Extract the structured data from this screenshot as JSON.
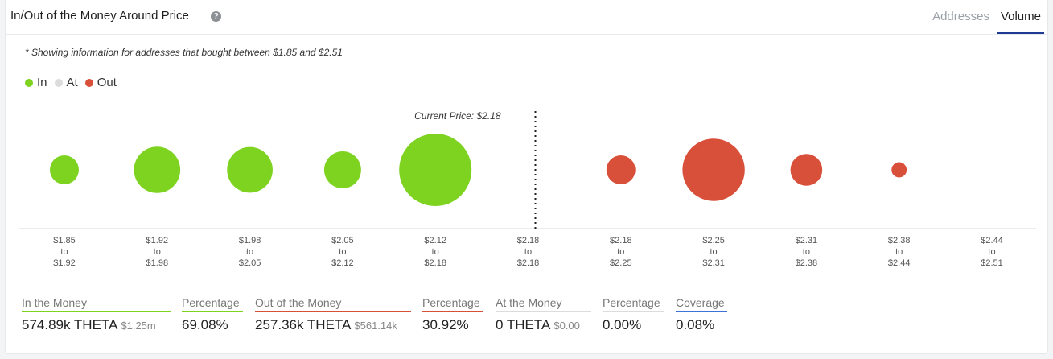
{
  "header": {
    "title": "In/Out of the Money Around Price",
    "tabs": [
      {
        "label": "Addresses",
        "active": false
      },
      {
        "label": "Volume",
        "active": true
      }
    ]
  },
  "note": "* Showing information for addresses that bought between $1.85 and $2.51",
  "legend": [
    {
      "label": "In",
      "color": "#7ed321"
    },
    {
      "label": "At",
      "color": "#dcdcdc"
    },
    {
      "label": "Out",
      "color": "#d9503a"
    }
  ],
  "chart_data": {
    "type": "scatter",
    "current_price_label": "Current Price: $2.18",
    "buckets": [
      {
        "from": "$1.85",
        "to": "$1.92",
        "status": "in",
        "size": 0.4
      },
      {
        "from": "$1.92",
        "to": "$1.98",
        "status": "in",
        "size": 0.64
      },
      {
        "from": "$1.98",
        "to": "$2.05",
        "status": "in",
        "size": 0.63
      },
      {
        "from": "$2.05",
        "to": "$2.12",
        "status": "in",
        "size": 0.51
      },
      {
        "from": "$2.12",
        "to": "$2.18",
        "status": "in",
        "size": 1.0
      },
      {
        "from": "$2.18",
        "to": "$2.18",
        "status": "at",
        "size": 0
      },
      {
        "from": "$2.18",
        "to": "$2.25",
        "status": "out",
        "size": 0.4
      },
      {
        "from": "$2.25",
        "to": "$2.31",
        "status": "out",
        "size": 0.86
      },
      {
        "from": "$2.31",
        "to": "$2.38",
        "status": "out",
        "size": 0.44
      },
      {
        "from": "$2.38",
        "to": "$2.44",
        "status": "out",
        "size": 0.21
      },
      {
        "from": "$2.44",
        "to": "$2.51",
        "status": "out",
        "size": 0
      }
    ],
    "tick_connector": "to",
    "current_price_after_bucket": 5
  },
  "stats": [
    {
      "label": "In the Money",
      "value": "574.89k THETA",
      "sub": "$1.25m",
      "color": "#7ed321"
    },
    {
      "label": "Percentage",
      "value": "69.08%",
      "sub": "",
      "color": "#7ed321"
    },
    {
      "label": "Out of the Money",
      "value": "257.36k THETA",
      "sub": "$561.14k",
      "color": "#d9503a"
    },
    {
      "label": "Percentage",
      "value": "30.92%",
      "sub": "",
      "color": "#d9503a"
    },
    {
      "label": "At the Money",
      "value": "0 THETA",
      "sub": "$0.00",
      "color": "#dcdcdc"
    },
    {
      "label": "Percentage",
      "value": "0.00%",
      "sub": "",
      "color": "#dcdcdc"
    },
    {
      "label": "Coverage",
      "value": "0.08%",
      "sub": "",
      "color": "#3b73d6"
    }
  ]
}
